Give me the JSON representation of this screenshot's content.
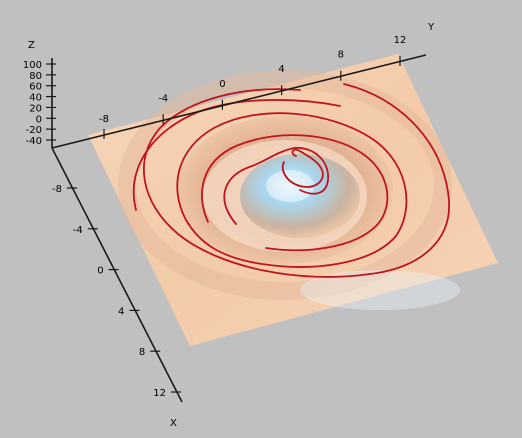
{
  "chart_data": {
    "type": "surface3d",
    "title": "",
    "axes": {
      "x": {
        "label": "X",
        "ticks": [
          "-8",
          "-4",
          "0",
          "4",
          "8",
          "12"
        ]
      },
      "y": {
        "label": "Y",
        "ticks": [
          "-8",
          "-4",
          "0",
          "4",
          "8",
          "12"
        ]
      },
      "z": {
        "label": "Z",
        "ticks": [
          "-40",
          "-20",
          "0",
          "20",
          "40",
          "60",
          "80",
          "100"
        ]
      }
    },
    "surface": {
      "description_colors": {
        "low": "#f4c9a4",
        "high": "#9fd0ea",
        "background": "#c0c0c0"
      }
    },
    "contours": [
      {
        "level": "outer",
        "color": "#c0141e"
      },
      {
        "level": "mid",
        "color": "#c0141e"
      },
      {
        "level": "inner",
        "color": "#c0141e"
      },
      {
        "level": "peak",
        "color": "#c0141e"
      }
    ],
    "grid": false,
    "legend": "none"
  }
}
